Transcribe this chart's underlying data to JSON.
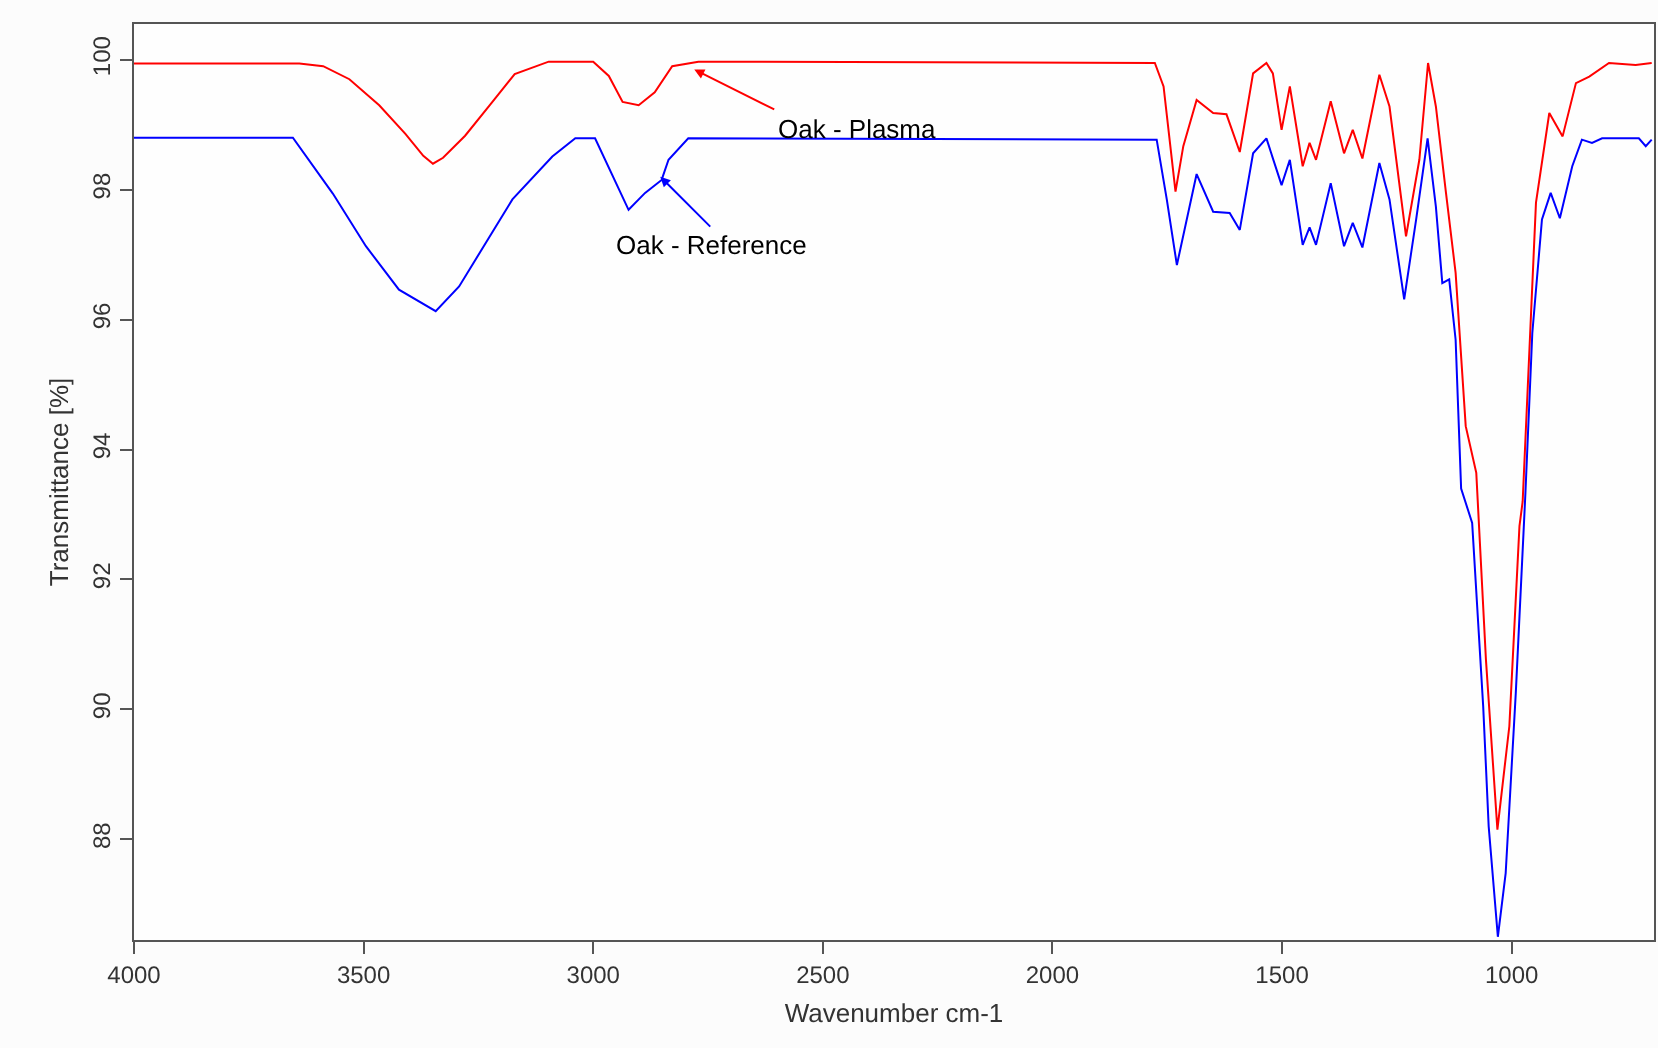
{
  "chart_data": {
    "type": "line",
    "xlabel": "Wavenumber cm-1",
    "ylabel": "Transmittance [%]",
    "xlim": [
      4000,
      690
    ],
    "xticks": [
      4000,
      3500,
      3000,
      2500,
      2000,
      1500,
      1000
    ],
    "ylim": [
      86.45,
      100.55
    ],
    "yticks": [
      88,
      90,
      92,
      94,
      96,
      98,
      100
    ],
    "marker": "none",
    "line_style": "solid",
    "annotations": [
      {
        "text": "Oak - Plasma",
        "x": 2780,
        "y": 99.85
      },
      {
        "text": "Oak - Reference",
        "x": 2854,
        "y": 98.2
      }
    ],
    "series": [
      {
        "color": "#ff0000",
        "x": [
          4000,
          3640,
          3588,
          3531,
          3466,
          3409,
          3370,
          3349,
          3327,
          3279,
          3223,
          3171,
          3097,
          3000,
          2966,
          2936,
          2901,
          2866,
          2828,
          2771,
          1777,
          1758,
          1732,
          1715,
          1686,
          1650,
          1621,
          1592,
          1563,
          1534,
          1520,
          1501,
          1483,
          1455,
          1440,
          1426,
          1394,
          1365,
          1346,
          1325,
          1288,
          1266,
          1230,
          1201,
          1182,
          1165,
          1143,
          1122,
          1100,
          1077,
          1056,
          1031,
          1005,
          983,
          976,
          947,
          918,
          889,
          860,
          831,
          788,
          730,
          695
        ],
        "values": [
          99.94,
          99.94,
          99.9,
          99.7,
          99.3,
          98.86,
          98.52,
          98.4,
          98.49,
          98.83,
          99.32,
          99.78,
          99.97,
          99.97,
          99.75,
          99.35,
          99.3,
          99.5,
          99.9,
          99.97,
          99.95,
          99.59,
          97.97,
          98.67,
          99.38,
          99.18,
          99.16,
          98.58,
          99.79,
          99.95,
          99.79,
          98.92,
          99.59,
          98.36,
          98.72,
          98.46,
          99.36,
          98.56,
          98.92,
          98.48,
          99.77,
          99.28,
          97.28,
          98.46,
          99.95,
          99.28,
          97.95,
          96.72,
          94.36,
          93.64,
          90.77,
          88.15,
          89.74,
          92.82,
          93.2,
          97.8,
          99.18,
          98.82,
          99.64,
          99.74,
          99.95,
          99.92,
          99.95
        ]
      },
      {
        "color": "#0000ff",
        "x": [
          4000,
          3654,
          3567,
          3495,
          3423,
          3343,
          3292,
          3176,
          3089,
          3039,
          2996,
          2923,
          2887,
          2851,
          2836,
          2793,
          1773,
          1751,
          1729,
          1686,
          1650,
          1614,
          1592,
          1563,
          1534,
          1501,
          1483,
          1455,
          1440,
          1426,
          1394,
          1365,
          1346,
          1325,
          1288,
          1266,
          1234,
          1208,
          1183,
          1165,
          1151,
          1136,
          1122,
          1110,
          1086,
          1062,
          1050,
          1030,
          1013,
          991,
          970,
          955,
          934,
          915,
          895,
          868,
          847,
          825,
          803,
          723,
          708,
          695
        ],
        "values": [
          98.8,
          98.8,
          97.94,
          97.13,
          96.46,
          96.13,
          96.51,
          97.85,
          98.51,
          98.79,
          98.79,
          97.69,
          97.95,
          98.15,
          98.46,
          98.79,
          98.77,
          97.85,
          96.84,
          98.24,
          97.66,
          97.64,
          97.38,
          98.56,
          98.79,
          98.07,
          98.46,
          97.15,
          97.42,
          97.15,
          98.1,
          97.13,
          97.49,
          97.11,
          98.41,
          97.85,
          96.31,
          97.54,
          98.79,
          97.74,
          96.56,
          96.62,
          95.69,
          93.4,
          92.87,
          90.05,
          88.2,
          86.5,
          87.48,
          90.25,
          93.33,
          95.79,
          97.54,
          97.95,
          97.56,
          98.36,
          98.77,
          98.72,
          98.79,
          98.79,
          98.67,
          98.77
        ]
      }
    ]
  }
}
